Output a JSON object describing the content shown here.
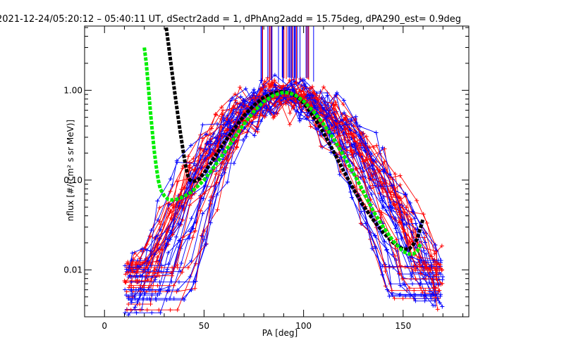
{
  "chart_data": {
    "type": "line",
    "title": "2021-12-24/05:20:12 – 05:40:11 UT, dSectr2add = 1, dPhAng2add = 15.75deg, dPA290_est=   0.9deg",
    "xlabel": "PA [deg]",
    "ylabel": "nflux [#/(cm² s sr MeV)]",
    "xlim": [
      -10,
      183
    ],
    "ylim": [
      0.003,
      5.2
    ],
    "y_scale": "log",
    "x_ticks": [
      0,
      50,
      100,
      150
    ],
    "x_tick_labels": [
      "0",
      "50",
      "100",
      "150"
    ],
    "y_ticks": [
      0.01,
      0.1,
      1.0
    ],
    "y_tick_labels": [
      "0.01",
      "0.10",
      "1.00"
    ],
    "grid": false,
    "colors": {
      "red": "#ff0000",
      "blue": "#0000ff",
      "black": "#000000",
      "green": "#00ee00"
    },
    "series": [
      {
        "color": "#000000",
        "style": "thick-dashed",
        "x": [
          31,
          32,
          33,
          34,
          35,
          36,
          37,
          38,
          39,
          40,
          41,
          42,
          43,
          44,
          46,
          48,
          50,
          53,
          56,
          60,
          65,
          70,
          75,
          80,
          85,
          88,
          91,
          94,
          97,
          100,
          104,
          108,
          112,
          116,
          120,
          125,
          130,
          135,
          140,
          145,
          150,
          153,
          155,
          157,
          158,
          159,
          160
        ],
        "y": [
          5.0,
          3.4,
          2.3,
          1.55,
          1.05,
          0.72,
          0.5,
          0.35,
          0.25,
          0.18,
          0.135,
          0.11,
          0.1,
          0.097,
          0.098,
          0.105,
          0.12,
          0.15,
          0.19,
          0.26,
          0.37,
          0.52,
          0.68,
          0.83,
          0.93,
          0.96,
          0.96,
          0.92,
          0.84,
          0.72,
          0.55,
          0.4,
          0.28,
          0.19,
          0.128,
          0.08,
          0.052,
          0.036,
          0.026,
          0.02,
          0.017,
          0.017,
          0.019,
          0.022,
          0.026,
          0.031,
          0.037
        ]
      },
      {
        "color": "#00ee00",
        "style": "thick-dashed",
        "x": [
          20,
          21,
          22,
          23,
          24,
          25,
          26,
          27,
          28,
          30,
          32,
          34,
          36,
          38,
          40,
          43,
          46,
          50,
          55,
          60,
          65,
          70,
          75,
          80,
          85,
          90,
          93,
          96,
          100,
          105,
          110,
          115,
          120,
          125,
          130,
          135,
          140,
          145,
          150,
          153,
          155,
          157,
          158,
          159
        ],
        "y": [
          3.0,
          2.0,
          1.1,
          0.6,
          0.35,
          0.21,
          0.14,
          0.1,
          0.08,
          0.067,
          0.061,
          0.06,
          0.061,
          0.063,
          0.066,
          0.072,
          0.082,
          0.1,
          0.14,
          0.2,
          0.29,
          0.42,
          0.58,
          0.75,
          0.88,
          0.95,
          0.93,
          0.88,
          0.76,
          0.58,
          0.42,
          0.29,
          0.19,
          0.12,
          0.075,
          0.045,
          0.03,
          0.021,
          0.016,
          0.015,
          0.015,
          0.016,
          0.018,
          0.02
        ]
      }
    ]
  }
}
